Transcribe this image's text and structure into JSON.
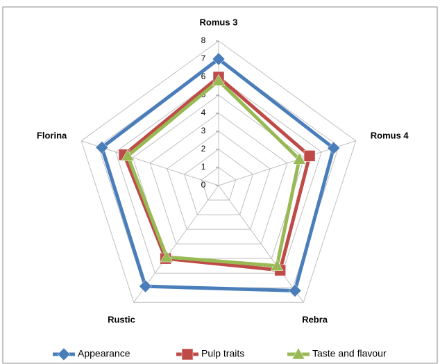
{
  "chart_data": {
    "type": "radar",
    "categories": [
      "Romus 3",
      "Romus 4",
      "Rebra",
      "Rustic",
      "Florina"
    ],
    "series": [
      {
        "name": "Appearance",
        "color": "#4a7ebb",
        "marker": "diamond",
        "values": [
          7,
          6.7,
          7.2,
          6.9,
          6.8
        ]
      },
      {
        "name": "Pulp traits",
        "color": "#be4b48",
        "marker": "square",
        "values": [
          6,
          5.3,
          5.8,
          5.0,
          5.5
        ]
      },
      {
        "name": "Taste and flavour",
        "color": "#98b954",
        "marker": "triangle",
        "values": [
          5.8,
          4.7,
          5.5,
          4.9,
          5.3
        ]
      }
    ],
    "ylim": [
      0,
      8
    ],
    "yticks": [
      0,
      1,
      2,
      3,
      4,
      5,
      6,
      7,
      8
    ],
    "grid": true,
    "legend": "bottom"
  }
}
